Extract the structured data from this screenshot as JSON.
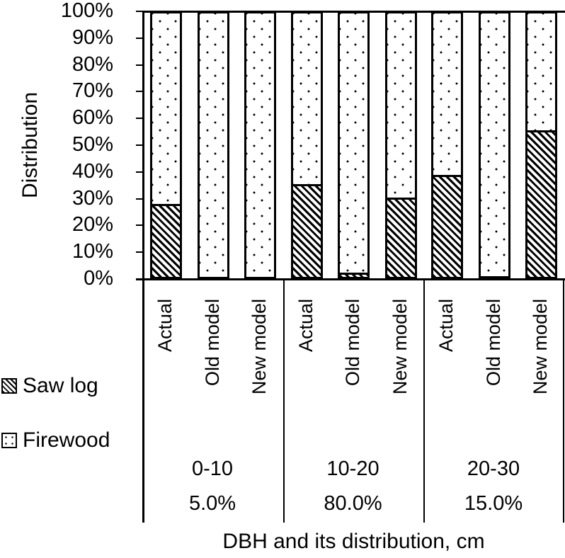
{
  "chart_data": {
    "type": "bar",
    "stacked": true,
    "normalized": true,
    "title": "",
    "ylabel": "Distribution",
    "xlabel": "DBH and its distribution, cm",
    "ylim": [
      0,
      100
    ],
    "yticks": [
      "0%",
      "10%",
      "20%",
      "30%",
      "40%",
      "50%",
      "60%",
      "70%",
      "80%",
      "90%",
      "100%"
    ],
    "grid": false,
    "legend_position": "left",
    "legend": [
      "Saw log",
      "Firewood"
    ],
    "groups": [
      {
        "range": "0-10",
        "share": "5.0%",
        "categories": [
          "Actual",
          "Old model",
          "New model"
        ]
      },
      {
        "range": "10-20",
        "share": "80.0%",
        "categories": [
          "Actual",
          "Old model",
          "New model"
        ]
      },
      {
        "range": "20-30",
        "share": "15.0%",
        "categories": [
          "Actual",
          "Old model",
          "New model"
        ]
      }
    ],
    "categories": [
      "0-10 Actual",
      "0-10 Old model",
      "0-10 New model",
      "10-20 Actual",
      "10-20 Old model",
      "10-20 New model",
      "20-30 Actual",
      "20-30 Old model",
      "20-30 New model"
    ],
    "series": [
      {
        "name": "Saw log",
        "pattern": "diagonal-hatch",
        "values": [
          28,
          0,
          0,
          35.5,
          2.5,
          30.5,
          39,
          1,
          55.5
        ]
      },
      {
        "name": "Firewood",
        "pattern": "dots",
        "values": [
          72,
          100,
          100,
          64.5,
          97.5,
          69.5,
          61,
          99,
          44.5
        ]
      }
    ]
  },
  "axis": {
    "y_title": "Distribution",
    "x_title": "DBH and its distribution, cm",
    "y_ticks": [
      "100%",
      "90%",
      "80%",
      "70%",
      "60%",
      "50%",
      "40%",
      "30%",
      "20%",
      "10%",
      "0%"
    ]
  },
  "legend": {
    "items": [
      {
        "label": "Saw log"
      },
      {
        "label": "Firewood"
      }
    ]
  },
  "groups": [
    {
      "range": "0-10",
      "share": "5.0%",
      "bars": [
        {
          "label": "Actual",
          "saw": 28
        },
        {
          "label": "Old model",
          "saw": 0
        },
        {
          "label": "New model",
          "saw": 0
        }
      ]
    },
    {
      "range": "10-20",
      "share": "80.0%",
      "bars": [
        {
          "label": "Actual",
          "saw": 35.5
        },
        {
          "label": "Old model",
          "saw": 2.5
        },
        {
          "label": "New model",
          "saw": 30.5
        }
      ]
    },
    {
      "range": "20-30",
      "share": "15.0%",
      "bars": [
        {
          "label": "Actual",
          "saw": 39
        },
        {
          "label": "Old model",
          "saw": 1
        },
        {
          "label": "New model",
          "saw": 55.5
        }
      ]
    }
  ]
}
